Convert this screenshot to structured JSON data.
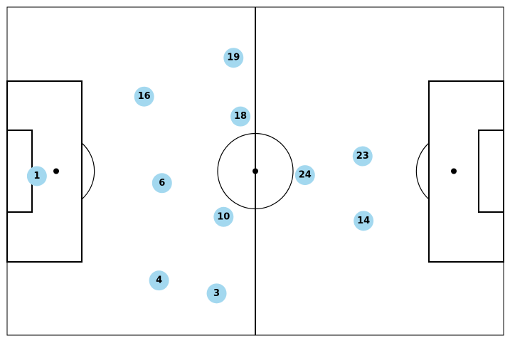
{
  "colors": {
    "pitch_background": "#ffffff",
    "line": "#000000",
    "player_marker": "#a3d8ef",
    "player_number": "#000000"
  },
  "players": [
    {
      "number": "1",
      "x": 6.0,
      "y": 34.0
    },
    {
      "number": "16",
      "x": 27.6,
      "y": 18.0
    },
    {
      "number": "19",
      "x": 45.6,
      "y": 10.2
    },
    {
      "number": "18",
      "x": 47.0,
      "y": 22.0
    },
    {
      "number": "6",
      "x": 31.2,
      "y": 35.4
    },
    {
      "number": "10",
      "x": 43.6,
      "y": 42.2
    },
    {
      "number": "4",
      "x": 30.6,
      "y": 55.0
    },
    {
      "number": "3",
      "x": 42.2,
      "y": 57.6
    },
    {
      "number": "24",
      "x": 60.0,
      "y": 33.8
    },
    {
      "number": "23",
      "x": 71.6,
      "y": 30.0
    },
    {
      "number": "14",
      "x": 71.8,
      "y": 43.0
    }
  ]
}
